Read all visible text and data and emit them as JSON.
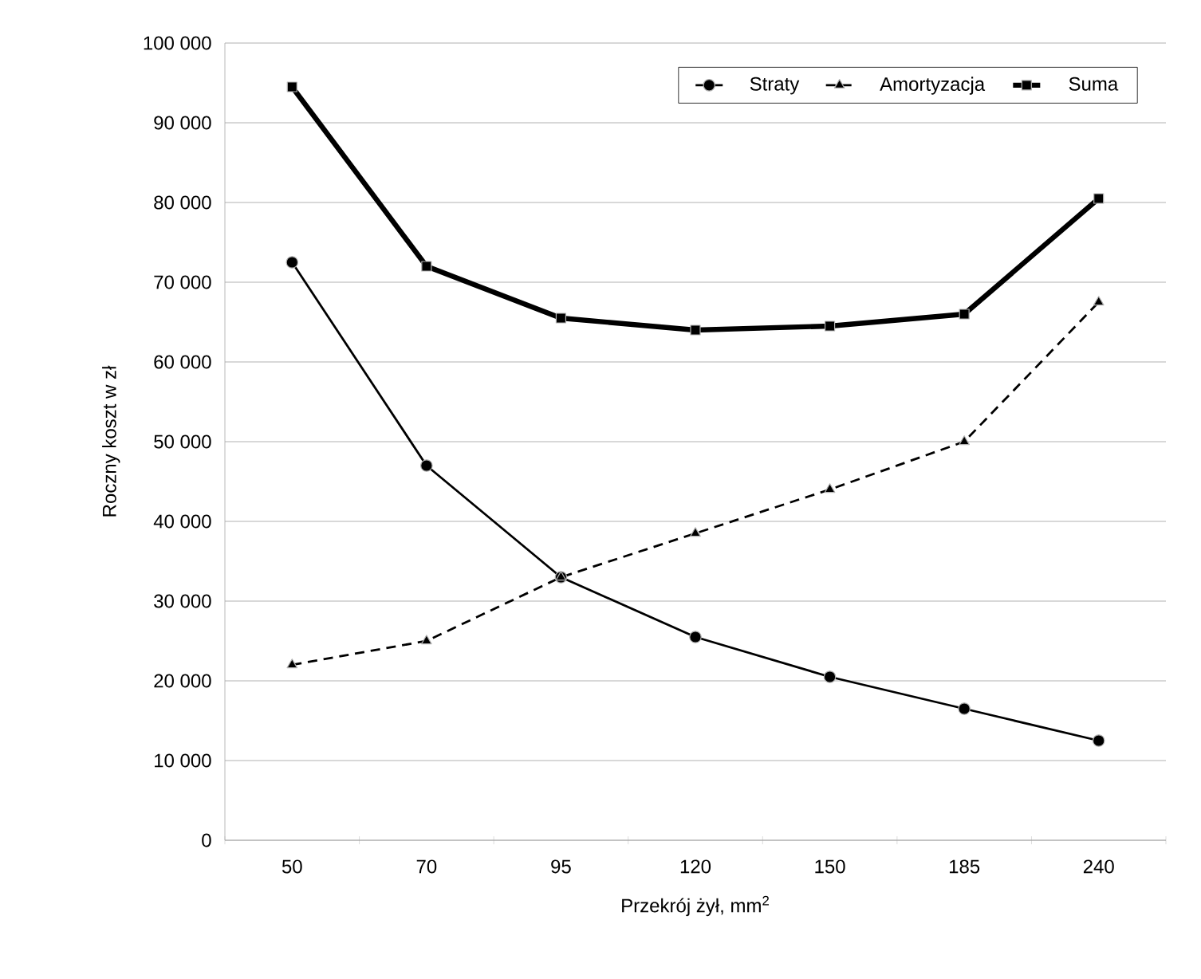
{
  "chart_data": {
    "type": "line",
    "xlabel": "Przekrój żył, mm$^{2}$",
    "ylabel": "Roczny koszt w zł",
    "categories": [
      "50",
      "70",
      "95",
      "120",
      "150",
      "185",
      "240"
    ],
    "series": [
      {
        "name": "Straty",
        "color": "#000000",
        "marker": "circle",
        "line_style": "solid",
        "values": [
          72500,
          47000,
          33000,
          25500,
          20500,
          16500,
          12500
        ]
      },
      {
        "name": "Amortyzacja",
        "color": "#000000",
        "marker": "triangle",
        "line_style": "dashed",
        "values": [
          22000,
          25000,
          33000,
          38500,
          44000,
          50000,
          67500
        ]
      },
      {
        "name": "Suma",
        "color": "#000000",
        "marker": "square",
        "line_style": "solid",
        "values": [
          94500,
          72000,
          65500,
          64000,
          64500,
          66000,
          80500
        ]
      }
    ],
    "ylim": [
      0,
      100000
    ],
    "yticks": [
      0,
      {
        "value": 10000,
        "label": "10 000"
      },
      {
        "value": 20000,
        "label": "20 000"
      },
      {
        "value": 30000,
        "label": "30 000"
      },
      {
        "value": 40000,
        "label": "40 000"
      },
      {
        "value": 50000,
        "label": "50 000"
      },
      {
        "value": 60000,
        "label": "60 000"
      },
      {
        "value": 70000,
        "label": "70 000"
      },
      {
        "value": 80000,
        "label": "80 000"
      },
      {
        "value": 90000,
        "label": "90 000"
      },
      {
        "value": 100000,
        "label": "100 000"
      }
    ],
    "grid": "y",
    "legend": "top right"
  }
}
